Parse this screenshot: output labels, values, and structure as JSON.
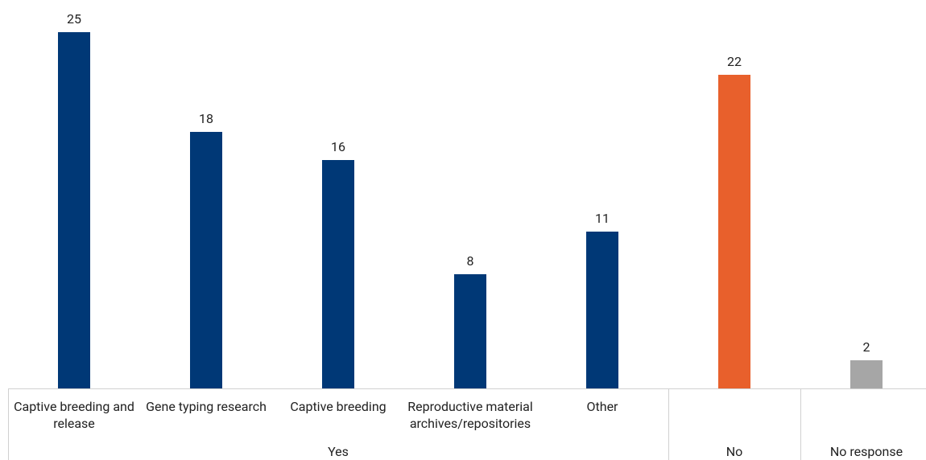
{
  "chart_data": {
    "type": "bar",
    "groups": [
      {
        "label": "Yes",
        "color": "#003876",
        "categories": [
          "Captive breeding and release",
          "Gene typing research",
          "Captive breeding",
          "Reproductive material archives/repositories",
          "Other"
        ],
        "values": [
          25,
          18,
          16,
          8,
          11
        ]
      },
      {
        "label": "No",
        "color": "#e8602c",
        "categories": [
          null
        ],
        "values": [
          22
        ]
      },
      {
        "label": "No response",
        "color": "#a6a6a6",
        "categories": [
          null
        ],
        "values": [
          2
        ]
      }
    ]
  }
}
